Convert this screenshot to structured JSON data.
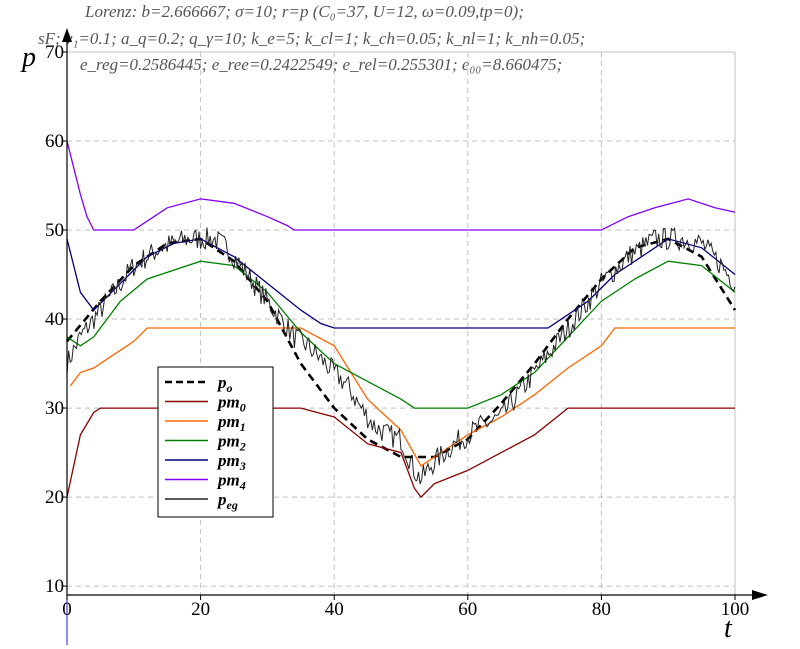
{
  "header": {
    "line1": "Lorenz: b=2.666667; σ=10; r=p (C₀=37, U=12, ω=0.09,tp=0);",
    "line2": "sF; v₁=0.1; a_q=0.2; q_γ=10; k_e=5; k_cl=1; k_ch=0.05; k_nl=1; k_nh=0.05;",
    "line3": "e_reg=0.2586445; e_ree=0.2422549; e_rel=0.255301; e₀₀=8.660475;"
  },
  "colors": {
    "po": "#000000",
    "pm0": "#8b0000",
    "pm1": "#ff6600",
    "pm2": "#008000",
    "pm3": "#000080",
    "pm4": "#8000ff",
    "peg": "#222222",
    "grid": "#c0c0c0",
    "zero_line": "#4040ff"
  },
  "chart_data": {
    "type": "line",
    "xlabel": "t",
    "ylabel": "p",
    "xlim": [
      0,
      100
    ],
    "ylim": [
      9,
      70
    ],
    "x_ticks": [
      0,
      20,
      40,
      60,
      80,
      100
    ],
    "y_ticks": [
      10,
      20,
      30,
      40,
      50,
      60,
      70
    ],
    "grid": true,
    "legend_position": "lower-left",
    "series": [
      {
        "name": "p_o",
        "key": "po",
        "style": "dashed",
        "points": [
          [
            0,
            37.5
          ],
          [
            5,
            42
          ],
          [
            10,
            46
          ],
          [
            15,
            48.5
          ],
          [
            20,
            49
          ],
          [
            25,
            46.5
          ],
          [
            30,
            42
          ],
          [
            35,
            35
          ],
          [
            40,
            30
          ],
          [
            45,
            26.5
          ],
          [
            50,
            24.5
          ],
          [
            55,
            24.5
          ],
          [
            60,
            26.5
          ],
          [
            65,
            30.5
          ],
          [
            70,
            35
          ],
          [
            75,
            40
          ],
          [
            80,
            44.5
          ],
          [
            85,
            48
          ],
          [
            90,
            49
          ],
          [
            95,
            47
          ],
          [
            100,
            41
          ]
        ]
      },
      {
        "name": "pm_0",
        "key": "pm0",
        "style": "solid",
        "points": [
          [
            0,
            20
          ],
          [
            2,
            27
          ],
          [
            4,
            29.5
          ],
          [
            5,
            30
          ],
          [
            25,
            30
          ],
          [
            35,
            30
          ],
          [
            40,
            29
          ],
          [
            45,
            26
          ],
          [
            50,
            25
          ],
          [
            52,
            21
          ],
          [
            53,
            20
          ],
          [
            55,
            21.5
          ],
          [
            60,
            23
          ],
          [
            65,
            25
          ],
          [
            70,
            27
          ],
          [
            75,
            30
          ],
          [
            100,
            30
          ]
        ]
      },
      {
        "name": "pm_1",
        "key": "pm1",
        "style": "solid",
        "points": [
          [
            0.5,
            32.5
          ],
          [
            2,
            34
          ],
          [
            4,
            34.5
          ],
          [
            6,
            35.5
          ],
          [
            10,
            37.5
          ],
          [
            12,
            39
          ],
          [
            35,
            39
          ],
          [
            40,
            37
          ],
          [
            45,
            31
          ],
          [
            50,
            27.5
          ],
          [
            53,
            23.5
          ],
          [
            56,
            25
          ],
          [
            60,
            27
          ],
          [
            65,
            29
          ],
          [
            70,
            31.5
          ],
          [
            75,
            34.5
          ],
          [
            80,
            37
          ],
          [
            82,
            39
          ],
          [
            100,
            39
          ]
        ]
      },
      {
        "name": "pm_2",
        "key": "pm2",
        "style": "solid",
        "points": [
          [
            0,
            38
          ],
          [
            2,
            37
          ],
          [
            4,
            38
          ],
          [
            8,
            42
          ],
          [
            12,
            44.5
          ],
          [
            16,
            45.5
          ],
          [
            20,
            46.5
          ],
          [
            25,
            46
          ],
          [
            30,
            43
          ],
          [
            35,
            38.5
          ],
          [
            40,
            35
          ],
          [
            45,
            33
          ],
          [
            50,
            31
          ],
          [
            52,
            30
          ],
          [
            60,
            30
          ],
          [
            65,
            31.5
          ],
          [
            70,
            34
          ],
          [
            75,
            38
          ],
          [
            80,
            42
          ],
          [
            85,
            44.5
          ],
          [
            90,
            46.5
          ],
          [
            95,
            46
          ],
          [
            100,
            43
          ]
        ]
      },
      {
        "name": "pm_3",
        "key": "pm3",
        "style": "solid",
        "points": [
          [
            0,
            49
          ],
          [
            1,
            46
          ],
          [
            2,
            43
          ],
          [
            4,
            41
          ],
          [
            8,
            44
          ],
          [
            12,
            47
          ],
          [
            16,
            48.5
          ],
          [
            20,
            49
          ],
          [
            25,
            47
          ],
          [
            30,
            44
          ],
          [
            35,
            41
          ],
          [
            38,
            39.5
          ],
          [
            40,
            39
          ],
          [
            72,
            39
          ],
          [
            78,
            42
          ],
          [
            82,
            45
          ],
          [
            86,
            47
          ],
          [
            90,
            49
          ],
          [
            95,
            48
          ],
          [
            100,
            45
          ]
        ]
      },
      {
        "name": "pm_4",
        "key": "pm4",
        "style": "solid",
        "points": [
          [
            0,
            60
          ],
          [
            1,
            57
          ],
          [
            2,
            54
          ],
          [
            3,
            51.5
          ],
          [
            4,
            50
          ],
          [
            10,
            50
          ],
          [
            12,
            51
          ],
          [
            15,
            52.5
          ],
          [
            20,
            53.5
          ],
          [
            25,
            53
          ],
          [
            30,
            51.5
          ],
          [
            33,
            50.5
          ],
          [
            34,
            50
          ],
          [
            80,
            50
          ],
          [
            84,
            51.5
          ],
          [
            88,
            52.5
          ],
          [
            93,
            53.5
          ],
          [
            97,
            52.5
          ],
          [
            100,
            52
          ]
        ]
      },
      {
        "name": "p_eg",
        "key": "peg",
        "style": "noisy",
        "points": [
          [
            0,
            35
          ],
          [
            2,
            38
          ],
          [
            4,
            40
          ],
          [
            6,
            42
          ],
          [
            8,
            44
          ],
          [
            10,
            46
          ],
          [
            12,
            47
          ],
          [
            14,
            48
          ],
          [
            16,
            48.5
          ],
          [
            18,
            49
          ],
          [
            20,
            49
          ],
          [
            22,
            49
          ],
          [
            24,
            48
          ],
          [
            26,
            46
          ],
          [
            28,
            44
          ],
          [
            30,
            42
          ],
          [
            32,
            40
          ],
          [
            34,
            38
          ],
          [
            36,
            37
          ],
          [
            38,
            35.5
          ],
          [
            40,
            34
          ],
          [
            42,
            32.5
          ],
          [
            44,
            30
          ],
          [
            46,
            28
          ],
          [
            48,
            27
          ],
          [
            50,
            26.5
          ],
          [
            52,
            23
          ],
          [
            53,
            22
          ],
          [
            55,
            24
          ],
          [
            58,
            26
          ],
          [
            62,
            28
          ],
          [
            65,
            29
          ],
          [
            68,
            32
          ],
          [
            72,
            36
          ],
          [
            76,
            40
          ],
          [
            80,
            44
          ],
          [
            84,
            47
          ],
          [
            88,
            49
          ],
          [
            92,
            49
          ],
          [
            95,
            48.5
          ],
          [
            98,
            46
          ],
          [
            100,
            44
          ]
        ]
      }
    ]
  }
}
